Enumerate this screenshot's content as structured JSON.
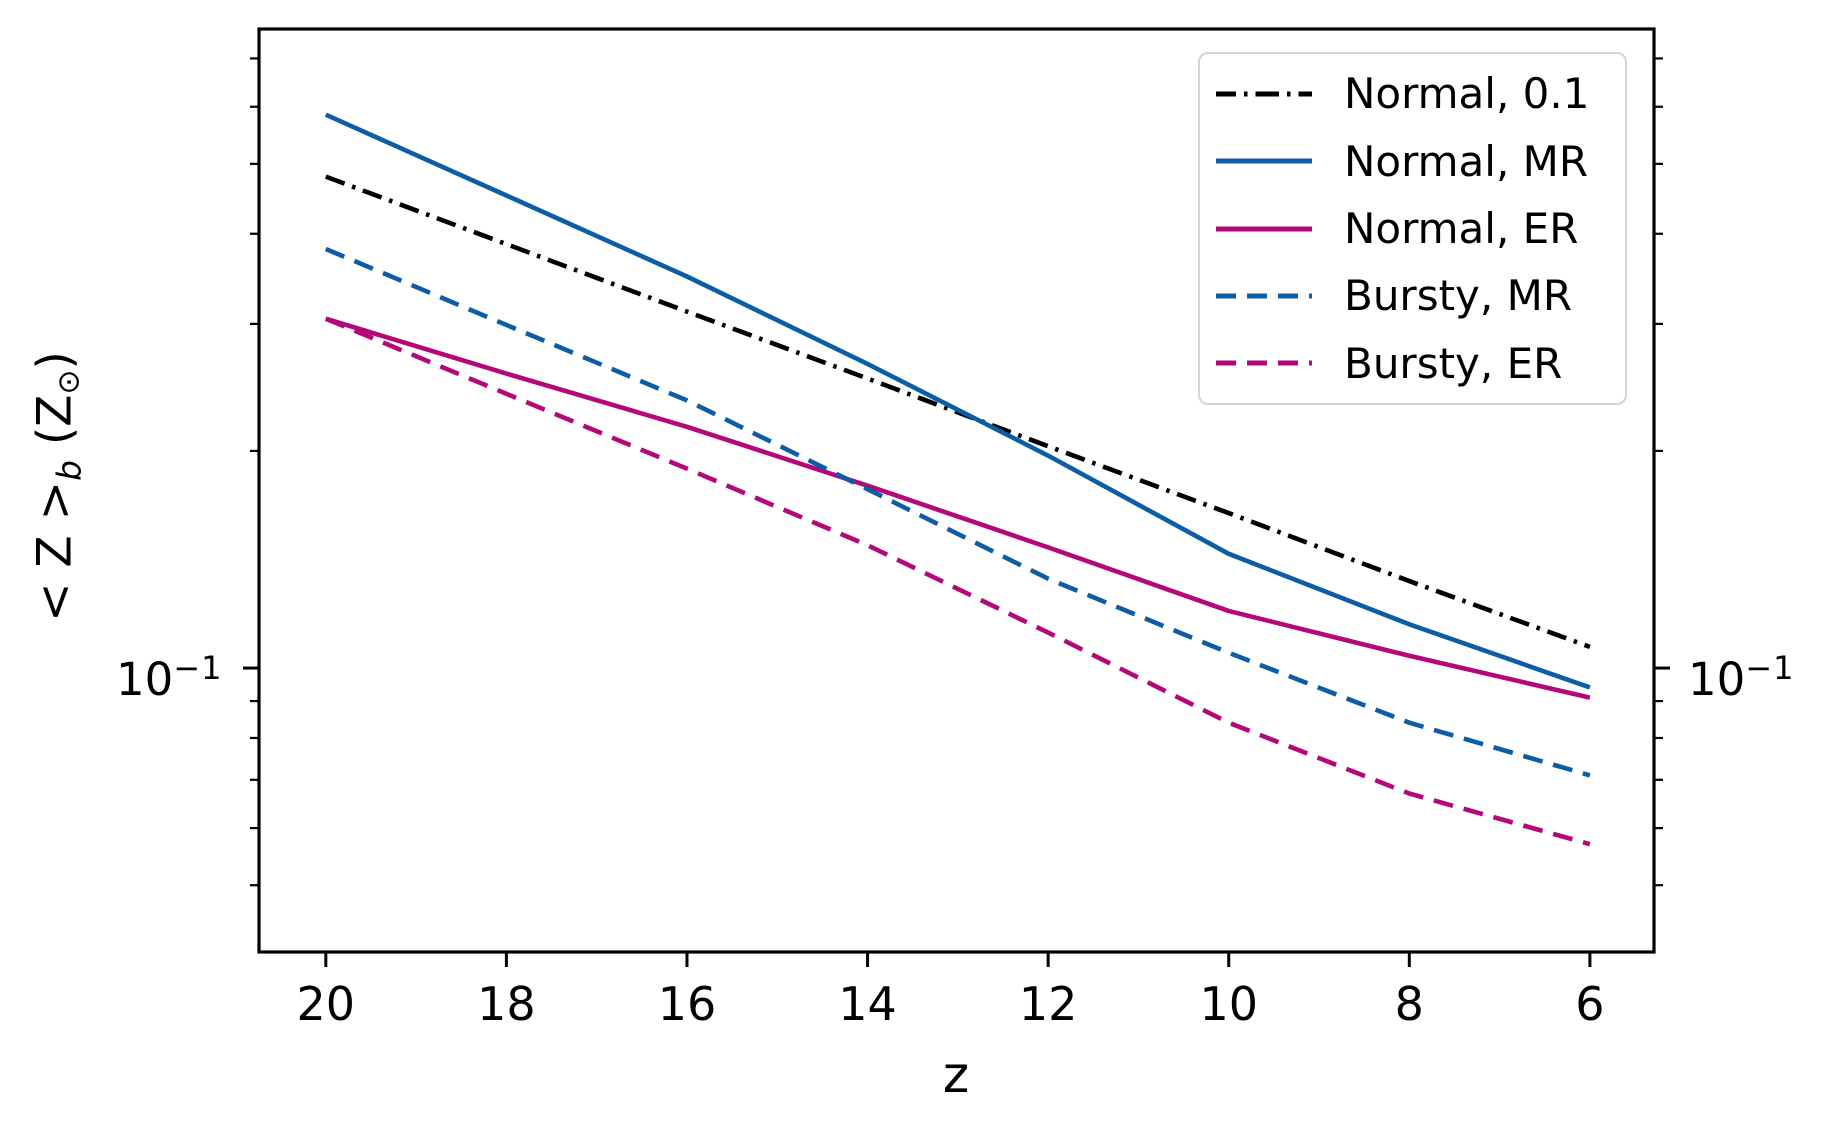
{
  "chart_data": {
    "type": "line",
    "title": "",
    "xlabel": "z",
    "ylabel": {
      "main": "< Z >",
      "sub": "b",
      "unit_open": " (Z",
      "sun": "⊙",
      "unit_close": ")"
    },
    "x_axis": {
      "ticks": [
        20,
        18,
        16,
        14,
        12,
        10,
        8,
        6
      ],
      "tick_labels": [
        "20",
        "18",
        "16",
        "14",
        "12",
        "10",
        "8",
        "6"
      ],
      "reversed": true,
      "xlim": [
        20.74,
        5.29
      ]
    },
    "y_axis": {
      "scale": "log",
      "ylim": [
        0.0404,
        0.769
      ],
      "major_ticks": [
        0.1
      ],
      "minor_ticks": [
        0.7,
        0.6,
        0.5,
        0.4,
        0.3,
        0.2,
        0.09,
        0.08,
        0.07,
        0.06,
        0.05
      ],
      "major_tick_label": {
        "base": "10",
        "exp": "−1"
      },
      "label_on_both_sides": true
    },
    "grid": false,
    "legend_position": "upper right",
    "colors": {
      "black": "#000000",
      "blue": "#0c5da5",
      "magenta": "#b4087a"
    },
    "x": [
      20,
      18,
      16,
      14,
      12,
      10,
      8,
      6
    ],
    "series": [
      {
        "label": "Normal, 0.1",
        "color": "#000000",
        "style": "dashdot",
        "values": [
          0.48,
          0.387,
          0.312,
          0.252,
          0.203,
          0.164,
          0.132,
          0.107
        ]
      },
      {
        "label": "Normal, MR",
        "color": "#0c5da5",
        "style": "solid",
        "values": [
          0.585,
          0.452,
          0.349,
          0.264,
          0.197,
          0.144,
          0.115,
          0.094
        ]
      },
      {
        "label": "Normal, ER",
        "color": "#b4087a",
        "style": "solid",
        "values": [
          0.305,
          0.256,
          0.216,
          0.179,
          0.147,
          0.12,
          0.104,
          0.091
        ]
      },
      {
        "label": "Bursty, MR",
        "color": "#0c5da5",
        "style": "dashed",
        "values": [
          0.381,
          0.299,
          0.235,
          0.177,
          0.133,
          0.105,
          0.084,
          0.071
        ]
      },
      {
        "label": "Bursty, ER",
        "color": "#b4087a",
        "style": "dashed",
        "values": [
          0.305,
          0.24,
          0.189,
          0.148,
          0.112,
          0.084,
          0.067,
          0.057
        ]
      }
    ]
  }
}
